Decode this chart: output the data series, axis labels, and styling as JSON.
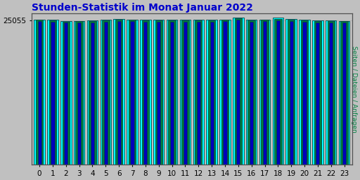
{
  "title": "Stunden-Statistik im Monat Januar 2022",
  "ylabel": "Seiten / Dateien / Anfragen",
  "xlabel_values": [
    0,
    1,
    2,
    3,
    4,
    5,
    6,
    7,
    8,
    9,
    10,
    11,
    12,
    13,
    14,
    15,
    16,
    17,
    18,
    19,
    20,
    21,
    22,
    23
  ],
  "seiten": [
    25200,
    25150,
    24900,
    24950,
    25000,
    25100,
    25250,
    25200,
    25150,
    25100,
    25100,
    25150,
    25100,
    25150,
    25200,
    25550,
    25100,
    25200,
    25450,
    25250,
    25100,
    25050,
    25050,
    24950
  ],
  "dateien": [
    25100,
    25050,
    24800,
    24850,
    24900,
    25000,
    25150,
    25100,
    25050,
    25000,
    25000,
    25050,
    25000,
    25050,
    25100,
    25400,
    25000,
    25100,
    25300,
    25150,
    25000,
    24950,
    24950,
    24850
  ],
  "anfragen": [
    24900,
    24800,
    24600,
    24650,
    24700,
    24800,
    24950,
    24900,
    24800,
    24750,
    24750,
    24800,
    24750,
    24800,
    24900,
    25150,
    24750,
    24850,
    25050,
    24900,
    24750,
    24700,
    24700,
    24600
  ],
  "color_seiten": "#00FFFF",
  "color_dateien": "#008040",
  "color_anfragen": "#0000BB",
  "bar_edge_color": "#004444",
  "background_color": "#C0C0C0",
  "plot_bg_color": "#C0C0C0",
  "title_color": "#0000CC",
  "ylabel_color": "#008040",
  "ylim_min": 0,
  "ylim_max": 26200,
  "ytick_val": 25055,
  "title_fontsize": 10,
  "tick_fontsize": 7.5
}
